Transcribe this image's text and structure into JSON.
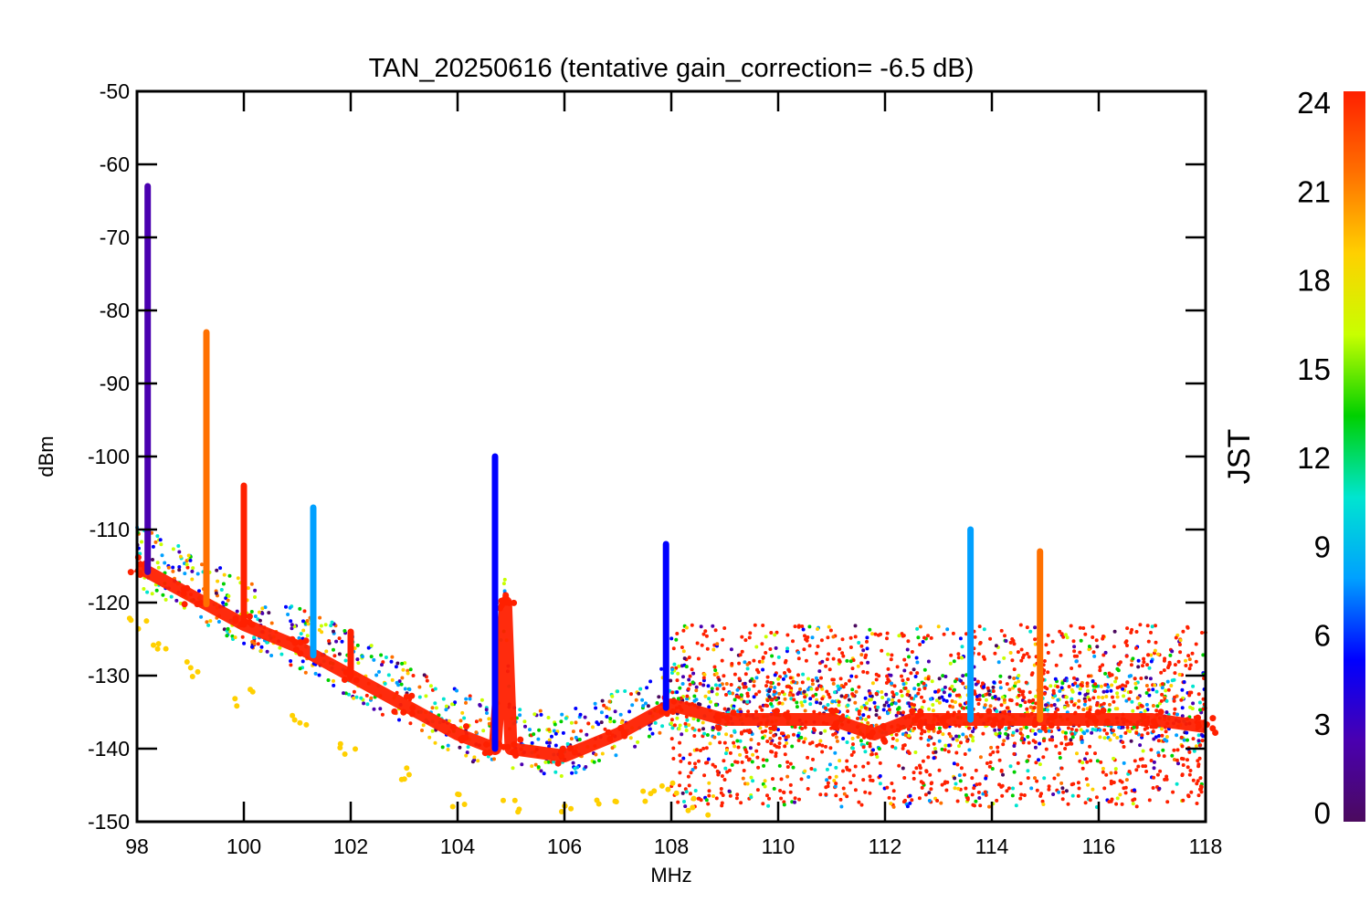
{
  "chart_data": {
    "type": "scatter",
    "title": "TAN_20250616 (tentative gain_correction= -6.5 dB)",
    "xlabel": "MHz",
    "ylabel": "dBm",
    "xlim": [
      98,
      118
    ],
    "ylim": [
      -150,
      -50
    ],
    "x_ticks": [
      "98",
      "100",
      "102",
      "104",
      "106",
      "108",
      "110",
      "112",
      "114",
      "116",
      "118"
    ],
    "y_ticks": [
      "-50",
      "-60",
      "-70",
      "-80",
      "-90",
      "-100",
      "-110",
      "-120",
      "-130",
      "-140",
      "-150"
    ],
    "colorbar": {
      "label": "JST",
      "range": [
        0,
        24
      ],
      "ticks": [
        "0",
        "3",
        "6",
        "9",
        "12",
        "15",
        "18",
        "21",
        "24"
      ],
      "colormap": "rainbow",
      "colors": [
        "#4b0a5e",
        "#4a00b0",
        "#0000ff",
        "#00a0ff",
        "#00e5d0",
        "#00d000",
        "#c8ff00",
        "#ffd000",
        "#ff7000",
        "#ff2000"
      ]
    },
    "grid": false,
    "series": [
      {
        "name": "",
        "color_value": 23,
        "x": [
          98.0,
          99.0,
          100.0,
          101.0,
          102.0,
          103.0,
          104.0,
          104.7,
          104.9,
          105.0,
          106.0,
          107.0,
          108.0,
          109.0,
          110.0,
          111.0,
          111.8,
          112.5,
          113.0,
          114.0,
          115.0,
          116.0,
          117.0,
          118.0
        ],
        "y": [
          -115,
          -119,
          -123,
          -126,
          -130,
          -134,
          -138,
          -140,
          -120,
          -140,
          -141,
          -138,
          -134,
          -136,
          -136,
          -136,
          -138,
          -136,
          -136,
          -136,
          -136,
          -136,
          -136,
          -137
        ]
      },
      {
        "name": "",
        "color_value": 19,
        "x": [
          98.0,
          98.5,
          99.0,
          100.0,
          101.0,
          102.0,
          103.0,
          104.0,
          105.0,
          106.0,
          106.8,
          107.5,
          108.0,
          108.5
        ],
        "y": [
          -123,
          -126,
          -129,
          -133,
          -136,
          -140,
          -143,
          -147,
          -148,
          -149,
          -147,
          -146,
          -145,
          -148
        ]
      }
    ],
    "spikes": [
      {
        "x": 98.2,
        "y_top": -63,
        "color_value": 3
      },
      {
        "x": 99.3,
        "y_top": -83,
        "color_value": 20
      },
      {
        "x": 100.0,
        "y_top": -104,
        "color_value": 23
      },
      {
        "x": 101.3,
        "y_top": -107,
        "color_value": 9
      },
      {
        "x": 102.0,
        "y_top": -124,
        "color_value": 23
      },
      {
        "x": 104.7,
        "y_top": -100,
        "color_value": 5
      },
      {
        "x": 104.9,
        "y_top": -119,
        "color_value": 23
      },
      {
        "x": 107.9,
        "y_top": -112,
        "color_value": 6
      },
      {
        "x": 113.6,
        "y_top": -110,
        "color_value": 9
      },
      {
        "x": 114.9,
        "y_top": -113,
        "color_value": 20
      }
    ],
    "band_noise": {
      "x_range": [
        108,
        118
      ],
      "y_range": [
        -148,
        -123
      ]
    }
  }
}
